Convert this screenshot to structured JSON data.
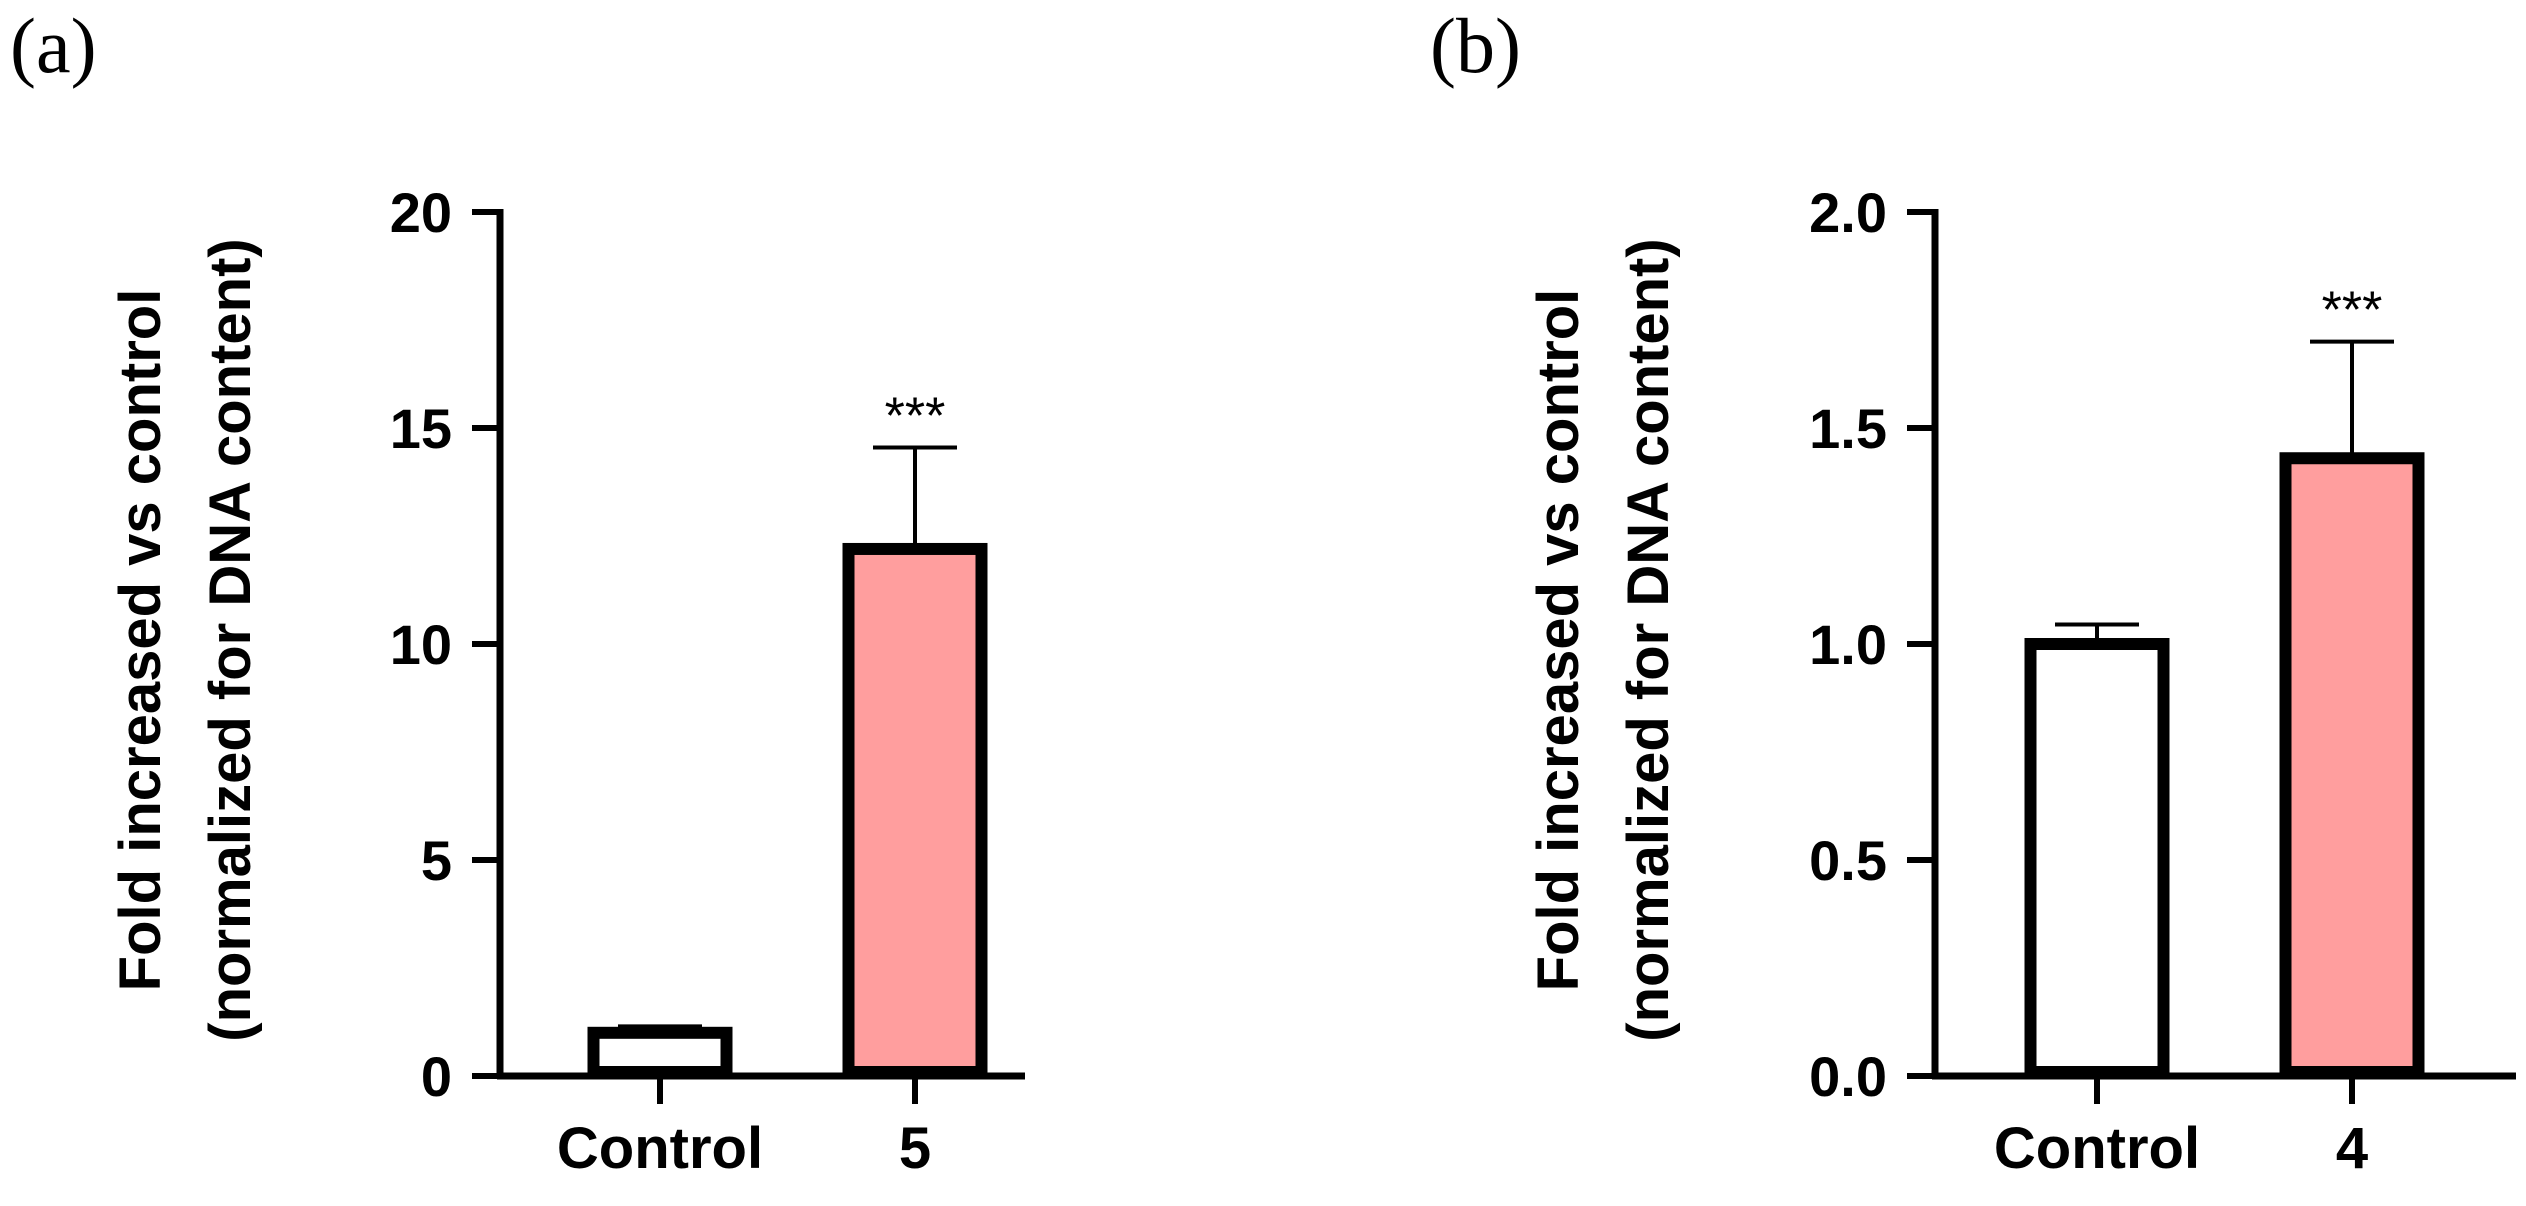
{
  "chart_data": [
    {
      "type": "bar",
      "panel_label": "(a)",
      "categories": [
        "Control",
        "5"
      ],
      "values": [
        1.0,
        12.2
      ],
      "error_upper": [
        0.15,
        2.35
      ],
      "annotations": [
        "",
        "***"
      ],
      "colors": [
        "#ffffff",
        "#ff9e9e"
      ],
      "ylabel_line1": "Fold increased vs control",
      "ylabel_line2": "(normalized for DNA content)",
      "ylim": [
        0,
        20
      ],
      "yticks": [
        0,
        5,
        10,
        15,
        20
      ],
      "ytick_labels": [
        "0",
        "5",
        "10",
        "15",
        "20"
      ]
    },
    {
      "type": "bar",
      "panel_label": "(b)",
      "categories": [
        "Control",
        "4"
      ],
      "values": [
        1.0,
        1.43
      ],
      "error_upper": [
        0.045,
        0.27
      ],
      "annotations": [
        "",
        "***"
      ],
      "colors": [
        "#ffffff",
        "#ff9e9e"
      ],
      "ylabel_line1": "Fold increased vs control",
      "ylabel_line2": "(normalized for DNA content)",
      "ylim": [
        0,
        2.0
      ],
      "yticks": [
        0,
        0.5,
        1.0,
        1.5,
        2.0
      ],
      "ytick_labels": [
        "0.0",
        "0.5",
        "1.0",
        "1.5",
        "2.0"
      ]
    }
  ]
}
